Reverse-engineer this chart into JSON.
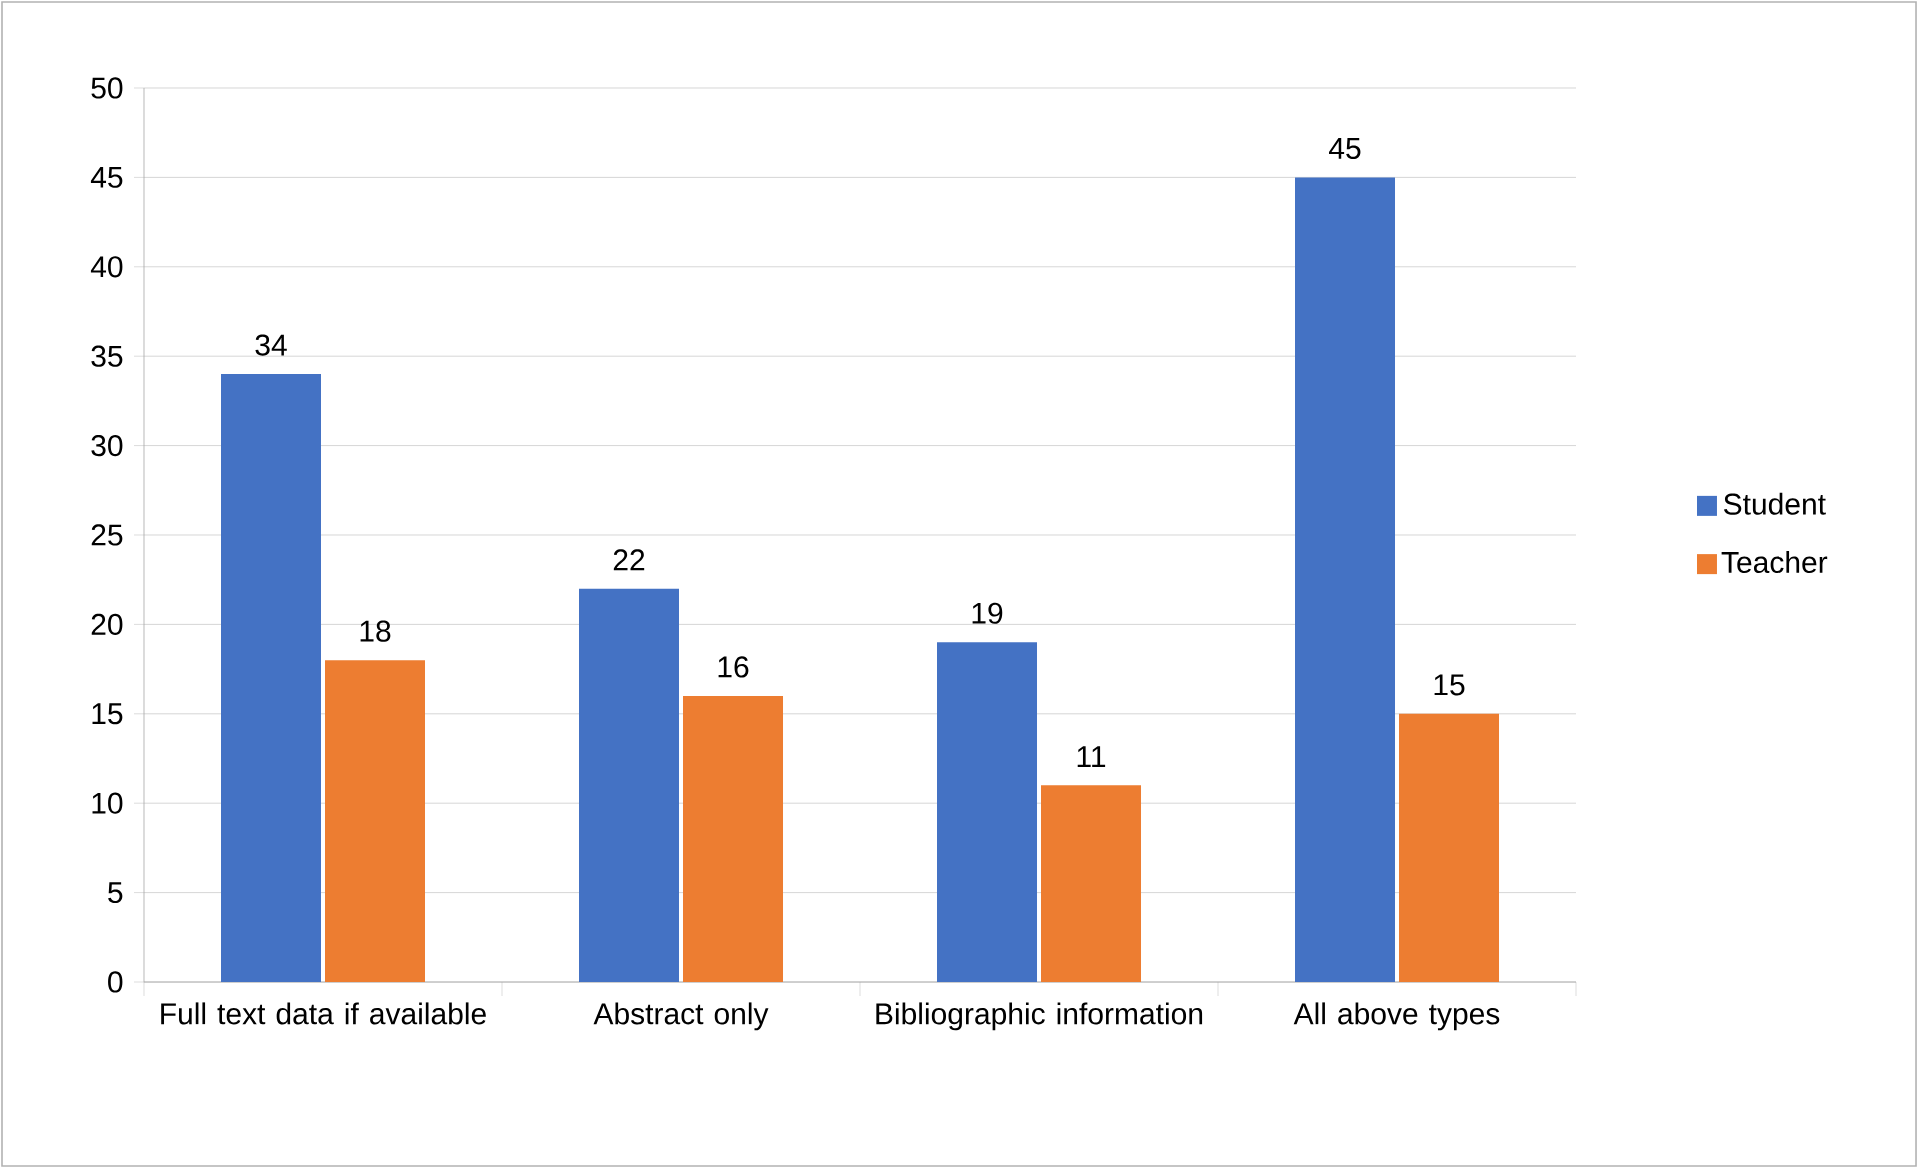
{
  "chart_data": {
    "type": "bar",
    "categories": [
      "Full text data if available",
      "Abstract only",
      "Bibliographic information",
      "All above types"
    ],
    "series": [
      {
        "name": "Student",
        "color": "#4472c4",
        "values": [
          34,
          22,
          19,
          45
        ]
      },
      {
        "name": "Teacher",
        "color": "#ed7d31",
        "values": [
          18,
          16,
          11,
          15
        ]
      }
    ],
    "ylim": [
      0,
      50
    ],
    "yticks": [
      0,
      5,
      10,
      15,
      20,
      25,
      30,
      35,
      40,
      45,
      50
    ],
    "grid": "y",
    "legend": "right",
    "data_labels": true
  }
}
